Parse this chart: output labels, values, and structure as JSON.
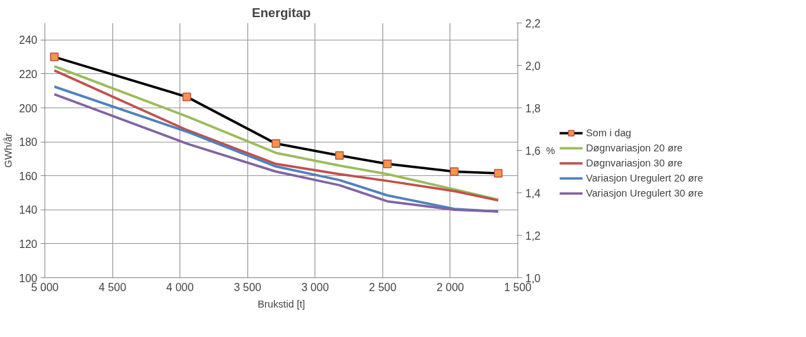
{
  "chart_data": {
    "type": "line",
    "title": "Energitap",
    "xlabel": "Brukstid [t]",
    "ylabel": "GWh/år",
    "y2label": "%",
    "x": [
      4930,
      3950,
      3290,
      2820,
      2465,
      1970,
      1645
    ],
    "xlim": [
      5000,
      1500
    ],
    "xticks": [
      {
        "value": 5000,
        "label": "5 000"
      },
      {
        "value": 4500,
        "label": "4 500"
      },
      {
        "value": 4000,
        "label": "4 000"
      },
      {
        "value": 3500,
        "label": "3 500"
      },
      {
        "value": 3000,
        "label": "3 000"
      },
      {
        "value": 2500,
        "label": "2 500"
      },
      {
        "value": 2000,
        "label": "2 000"
      },
      {
        "value": 1500,
        "label": "1 500"
      }
    ],
    "ylim": [
      100,
      250
    ],
    "yticks": [
      100,
      120,
      140,
      160,
      180,
      200,
      220,
      240
    ],
    "y2lim": [
      1.0,
      2.2
    ],
    "y2ticks": [
      {
        "value": 1.0,
        "label": "1,0"
      },
      {
        "value": 1.2,
        "label": "1,2"
      },
      {
        "value": 1.4,
        "label": "1,4"
      },
      {
        "value": 1.6,
        "label": "1,6"
      },
      {
        "value": 1.8,
        "label": "1,8"
      },
      {
        "value": 2.0,
        "label": "2,0"
      },
      {
        "value": 2.2,
        "label": "2,2"
      }
    ],
    "grid": true,
    "legend": "right",
    "line_style": "solid",
    "series": [
      {
        "name": "Som i dag",
        "color": "#000000",
        "marker": "square",
        "values": [
          230,
          206.5,
          179,
          172,
          167,
          162.5,
          161.5
        ]
      },
      {
        "name": "Døgnvariasjon 20 øre",
        "color": "#9bbb59",
        "marker": "none",
        "values": [
          224.5,
          195,
          173.5,
          166,
          161,
          152,
          146
        ]
      },
      {
        "name": "Døgnvariasjon 30 øre",
        "color": "#c0504d",
        "marker": "none",
        "values": [
          222,
          187,
          167,
          161,
          157,
          151,
          145.5
        ]
      },
      {
        "name": "Variasjon Uregulert 20 øre",
        "color": "#4f81bd",
        "marker": "none",
        "values": [
          212.5,
          186,
          165.5,
          157.5,
          148.5,
          140.5,
          139
        ]
      },
      {
        "name": "Variasjon Uregulert 30 øre",
        "color": "#8064a2",
        "marker": "none",
        "values": [
          208,
          179,
          162.5,
          154.5,
          145,
          140,
          139
        ]
      }
    ]
  }
}
